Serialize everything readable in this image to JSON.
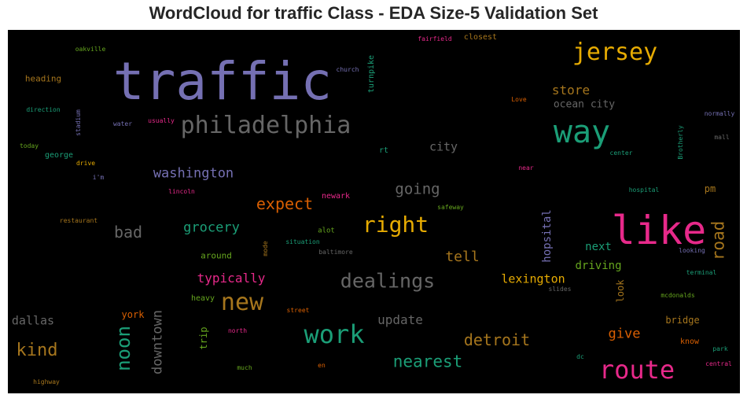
{
  "chart_data": {
    "type": "wordcloud",
    "title": "WordCloud for traffic Class - EDA Size-5 Validation Set",
    "background": "#000000",
    "words": [
      {
        "text": "traffic",
        "color": "#7570b3"
      },
      {
        "text": "like",
        "color": "#e7298a"
      },
      {
        "text": "way",
        "color": "#1b9e77"
      },
      {
        "text": "jersey",
        "color": "#e6ab02"
      },
      {
        "text": "philadelphia",
        "color": "#666666"
      },
      {
        "text": "route",
        "color": "#e7298a"
      },
      {
        "text": "work",
        "color": "#1b9e77"
      },
      {
        "text": "new",
        "color": "#a6761d"
      },
      {
        "text": "dealings",
        "color": "#666666"
      },
      {
        "text": "right",
        "color": "#e6ab02"
      },
      {
        "text": "noon",
        "color": "#1b9e77"
      },
      {
        "text": "kind",
        "color": "#a6761d"
      },
      {
        "text": "nearest",
        "color": "#1b9e77"
      },
      {
        "text": "detroit",
        "color": "#a6761d"
      },
      {
        "text": "road",
        "color": "#a6761d"
      },
      {
        "text": "expect",
        "color": "#d95f02"
      },
      {
        "text": "bad",
        "color": "#666666"
      },
      {
        "text": "going",
        "color": "#666666"
      },
      {
        "text": "washington",
        "color": "#7570b3"
      },
      {
        "text": "downtown",
        "color": "#666666"
      },
      {
        "text": "grocery",
        "color": "#1b9e77"
      },
      {
        "text": "tell",
        "color": "#a6761d"
      },
      {
        "text": "store",
        "color": "#a6761d"
      },
      {
        "text": "update",
        "color": "#666666"
      },
      {
        "text": "give",
        "color": "#d95f02"
      },
      {
        "text": "typically",
        "color": "#e7298a"
      },
      {
        "text": "hopsital",
        "color": "#7570b3"
      },
      {
        "text": "lexington",
        "color": "#e6ab02"
      },
      {
        "text": "dallas",
        "color": "#666666"
      },
      {
        "text": "city",
        "color": "#666666"
      },
      {
        "text": "driving",
        "color": "#66a61e"
      },
      {
        "text": "next",
        "color": "#1b9e77"
      },
      {
        "text": "ocean city",
        "color": "#666666"
      },
      {
        "text": "bridge",
        "color": "#a6761d"
      },
      {
        "text": "look",
        "color": "#a6761d"
      },
      {
        "text": "york",
        "color": "#d95f02"
      },
      {
        "text": "trip",
        "color": "#66a61e"
      },
      {
        "text": "pm",
        "color": "#a6761d"
      },
      {
        "text": "around",
        "color": "#66a61e"
      },
      {
        "text": "heavy",
        "color": "#66a61e"
      },
      {
        "text": "turnpike",
        "color": "#1b9e77"
      },
      {
        "text": "heading",
        "color": "#a6761d"
      },
      {
        "text": "closest",
        "color": "#a6761d"
      },
      {
        "text": "rt",
        "color": "#1b9e77"
      },
      {
        "text": "george",
        "color": "#1b9e77"
      },
      {
        "text": "know",
        "color": "#d95f02"
      },
      {
        "text": "newark",
        "color": "#e7298a"
      },
      {
        "text": "alot",
        "color": "#66a61e"
      },
      {
        "text": "situation",
        "color": "#1b9e77"
      },
      {
        "text": "baltimore",
        "color": "#666666"
      },
      {
        "text": "safeway",
        "color": "#66a61e"
      },
      {
        "text": "lincoln",
        "color": "#e7298a"
      },
      {
        "text": "restaurant",
        "color": "#a6761d"
      },
      {
        "text": "oakville",
        "color": "#66a61e"
      },
      {
        "text": "church",
        "color": "#7570b3"
      },
      {
        "text": "fairfield",
        "color": "#e7298a"
      },
      {
        "text": "direction",
        "color": "#1b9e77"
      },
      {
        "text": "stadium",
        "color": "#7570b3"
      },
      {
        "text": "water",
        "color": "#7570b3"
      },
      {
        "text": "usually",
        "color": "#e7298a"
      },
      {
        "text": "today",
        "color": "#66a61e"
      },
      {
        "text": "drive",
        "color": "#e6ab02"
      },
      {
        "text": "i'm",
        "color": "#7570b3"
      },
      {
        "text": "Love",
        "color": "#d95f02"
      },
      {
        "text": "normally",
        "color": "#7570b3"
      },
      {
        "text": "mall",
        "color": "#666666"
      },
      {
        "text": "Brotherly",
        "color": "#1b9e77"
      },
      {
        "text": "center",
        "color": "#1b9e77"
      },
      {
        "text": "near",
        "color": "#e7298a"
      },
      {
        "text": "hospital",
        "color": "#1b9e77"
      },
      {
        "text": "looking",
        "color": "#7570b3"
      },
      {
        "text": "terminal",
        "color": "#1b9e77"
      },
      {
        "text": "slides",
        "color": "#666666"
      },
      {
        "text": "mcdonalds",
        "color": "#66a61e"
      },
      {
        "text": "mode",
        "color": "#a6761d"
      },
      {
        "text": "street",
        "color": "#d95f02"
      },
      {
        "text": "north",
        "color": "#e7298a"
      },
      {
        "text": "much",
        "color": "#66a61e"
      },
      {
        "text": "en",
        "color": "#d95f02"
      },
      {
        "text": "dc",
        "color": "#1b9e77"
      },
      {
        "text": "park",
        "color": "#1b9e77"
      },
      {
        "text": "central",
        "color": "#e7298a"
      },
      {
        "text": "highway",
        "color": "#a6761d"
      }
    ]
  }
}
